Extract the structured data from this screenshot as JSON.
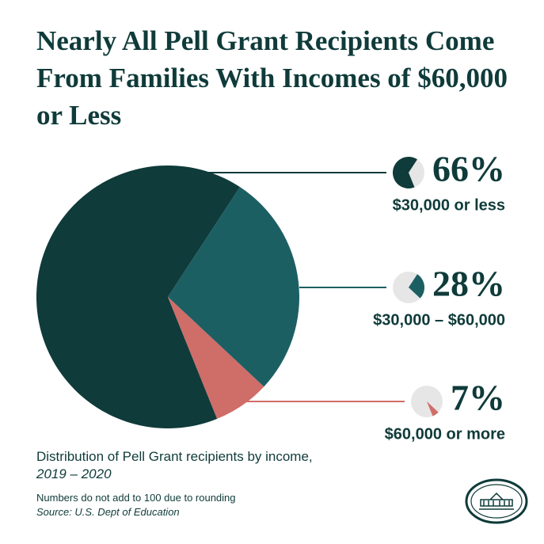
{
  "chart_data": {
    "type": "pie",
    "title": "Nearly All Pell Grant Recipients Come From Families With Incomes of $60,000 or Less",
    "categories": [
      "$30,000 or less",
      "$30,000 – $60,000",
      "$60,000 or more"
    ],
    "values": [
      66,
      28,
      7
    ],
    "value_labels": [
      "66%",
      "28%",
      "7%"
    ],
    "colors": [
      "#0f3b3a",
      "#1c5f63",
      "#cf6d69"
    ],
    "caption": "Distribution of Pell Grant recipients by income,",
    "caption_period": "2019 – 2020",
    "note": "Numbers do not add to 100 due to rounding",
    "source": "Source: U.S. Dept of Education"
  }
}
